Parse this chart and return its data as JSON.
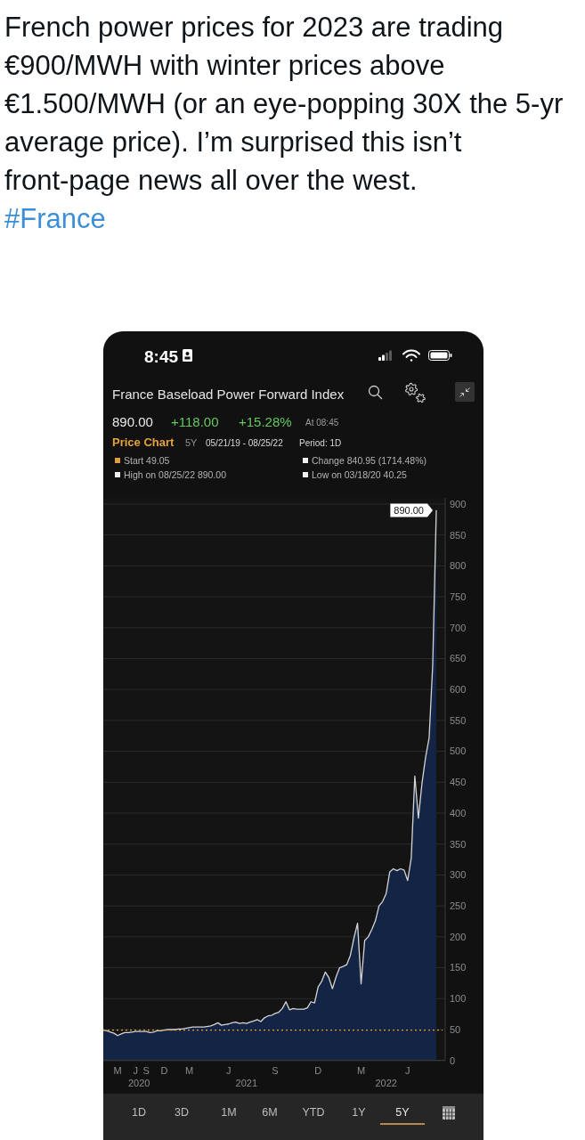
{
  "chart_data": {
    "type": "area",
    "title": "France Baseload Power Forward Index",
    "annotations": [
      "French power prices for 2023 are trading €900/MWH with winter prices above €1.500/MWH (or an eye-popping 30X the 5-yr average price). I’m surprised this isn’t front-page news all over the west.",
      "#France",
      "8:45",
      "890.00",
      "+118.00",
      "+15.28%",
      "At 08:45",
      "Price Chart",
      "5Y",
      "05/21/19 - 08/25/22",
      "Period: 1D",
      "Start 49.05",
      "Change 840.95 (1714.48%)",
      "High on 08/25/22 890.00",
      "Low on 03/18/20 40.25",
      "890.00",
      "2020",
      "2021",
      "2022",
      "1D",
      "3D",
      "1M",
      "6M",
      "YTD",
      "1Y",
      "5Y"
    ],
    "categories": [
      null,
      null,
      null,
      null,
      "M",
      null,
      null,
      null,
      null,
      "J",
      null,
      null,
      "S",
      null,
      null,
      null,
      null,
      "D",
      null,
      null,
      null,
      null,
      null,
      null,
      "M",
      null,
      null,
      null,
      null,
      null,
      null,
      null,
      null,
      null,
      null,
      "J",
      null,
      null,
      null,
      null,
      null,
      null,
      null,
      null,
      null,
      null,
      null,
      null,
      "S",
      null,
      null,
      null,
      null,
      null,
      null,
      null,
      null,
      null,
      null,
      null,
      "D",
      null,
      null,
      null,
      null,
      null,
      null,
      null,
      null,
      null,
      null,
      null,
      "M",
      null,
      null,
      null,
      null,
      null,
      null,
      null,
      null,
      null,
      null,
      null,
      null,
      "J",
      null,
      null,
      null,
      null,
      null,
      null,
      null,
      null
    ],
    "values": [
      49.05,
      48,
      46,
      44,
      40.25,
      43,
      45,
      45,
      46,
      47,
      47,
      47,
      47,
      45,
      46,
      48,
      48,
      49,
      50,
      50,
      50,
      51,
      51,
      52,
      53,
      54,
      54,
      54,
      54,
      55,
      56,
      58,
      61,
      57,
      58,
      59,
      61,
      62,
      60,
      61,
      60,
      62,
      64,
      66,
      63,
      69,
      72,
      73,
      76,
      78,
      84,
      95,
      82,
      84,
      83,
      83,
      83,
      85,
      95,
      93,
      119,
      128,
      143,
      134,
      116,
      135,
      150,
      152,
      155,
      170,
      198,
      222,
      124,
      194,
      200,
      212,
      226,
      250,
      257,
      270,
      305,
      310,
      307,
      310,
      308,
      291,
      327,
      460,
      392,
      448,
      490,
      522,
      640,
      890
    ],
    "color": "#132445",
    "ylim": [
      0,
      910
    ],
    "yticks": [
      0,
      50,
      100,
      150,
      200,
      250,
      300,
      350,
      400,
      450,
      500,
      550,
      600,
      650,
      700,
      750,
      800,
      850,
      900
    ],
    "grid": "y",
    "ref_lines": [
      {
        "axis": "y",
        "value": 49.05,
        "color": "#e39b3c",
        "line_style": "dotted"
      }
    ]
  }
}
